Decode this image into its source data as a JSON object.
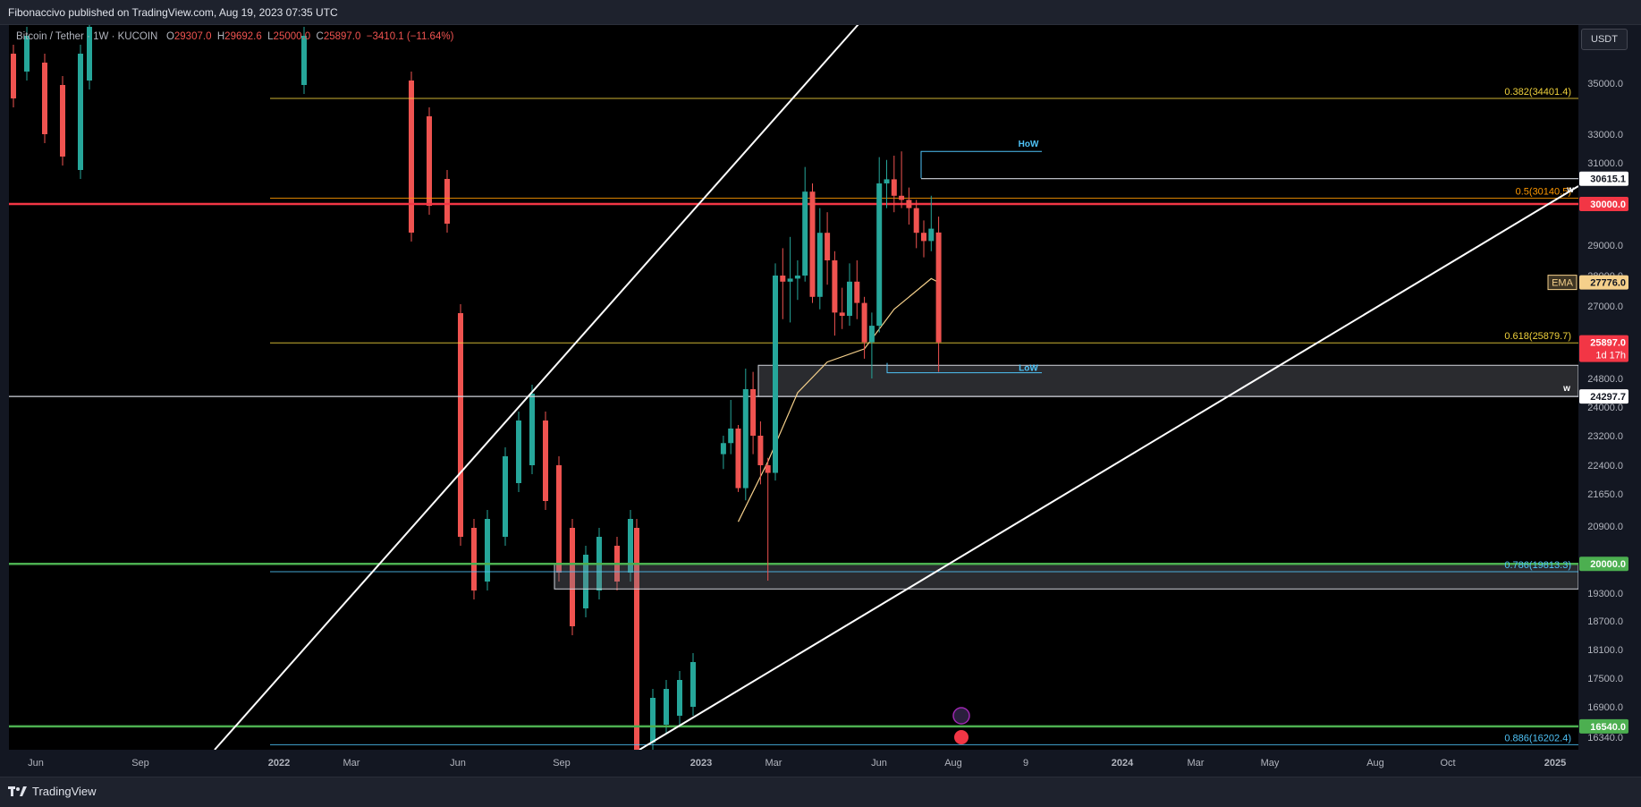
{
  "header": {
    "published": "Fibonacci​vo published on TradingView.com, Aug 19, 2023 07:35 UTC",
    "currency_button": "USDT"
  },
  "legend": {
    "symbol": "Bitcoin / Tether",
    "interval": "1W",
    "exchange": "KUCOIN",
    "open_label": "O",
    "open": "29307.0",
    "high_label": "H",
    "high": "29692.6",
    "low_label": "L",
    "low": "25000.0",
    "close_label": "C",
    "close": "25897.0",
    "change": "−3410.1 (−11.64%)"
  },
  "footer": {
    "brand": "TradingView"
  },
  "colors": {
    "background": "#000000",
    "bull": "#26a69a",
    "bear": "#ef5350",
    "ema": "#f5d08b",
    "fib": "#f0d23c",
    "cyan": "#4fc3f7",
    "green_level": "#4caf50",
    "red_level": "#f23645"
  },
  "chart_data": {
    "type": "candlestick",
    "symbol": "Bitcoin / Tether, 1W, KUCOIN",
    "price_scale": [
      "35000.0",
      "33000.0",
      "31000.0",
      "29000.0",
      "28000.0",
      "27000.0",
      "24800.0",
      "24000.0",
      "23200.0",
      "22400.0",
      "21650.0",
      "20900.0",
      "19300.0",
      "18700.0",
      "18100.0",
      "17500.0",
      "16900.0",
      "16340.0"
    ],
    "time_scale": [
      "Jun",
      "Sep",
      "2022",
      "Mar",
      "Jun",
      "Sep",
      "2023",
      "Mar",
      "Jun",
      "Aug",
      "9",
      "2024",
      "Mar",
      "May",
      "Aug",
      "Oct",
      "2025"
    ],
    "price_labels": [
      {
        "text": "30615.1",
        "style": "white"
      },
      {
        "text": "30000.0",
        "style": "red"
      },
      {
        "text": "27776.0",
        "style": "ema",
        "tag": "EMA"
      },
      {
        "text": "25897.0",
        "style": "red",
        "sub": "1d 17h"
      },
      {
        "text": "24297.7",
        "style": "white"
      },
      {
        "text": "20000.0",
        "style": "green"
      },
      {
        "text": "16540.0",
        "style": "green"
      }
    ],
    "fib_levels": [
      {
        "label": "0.382(34401.4)",
        "price": 34401.4
      },
      {
        "label": "0.5(30140.5)",
        "price": 30140.5
      },
      {
        "label": "0.618(25879.7)",
        "price": 25879.7
      },
      {
        "label": "0.786(19813.3)",
        "price": 19813.3
      },
      {
        "label": "0.886(16202.4)",
        "price": 16202.4
      }
    ],
    "annotations": [
      "HoW",
      "LoW",
      "w",
      "w"
    ],
    "horizontal_levels": [
      30615.1,
      30000.0,
      24297.7,
      20000.0,
      16540.0
    ],
    "zones": [
      {
        "from": 24297.7,
        "to": 25200.0
      },
      {
        "from": 19400.0,
        "to": 20000.0
      }
    ],
    "candles": [
      {
        "t": "2023-01-23",
        "o": 22700,
        "h": 23200,
        "l": 22300,
        "c": 23000
      },
      {
        "t": "2023-01-30",
        "o": 23000,
        "h": 24200,
        "l": 22700,
        "c": 23400
      },
      {
        "t": "2023-02-06",
        "o": 23400,
        "h": 23500,
        "l": 21700,
        "c": 21800
      },
      {
        "t": "2023-02-13",
        "o": 21800,
        "h": 25100,
        "l": 21500,
        "c": 24500
      },
      {
        "t": "2023-02-20",
        "o": 24500,
        "h": 25000,
        "l": 22700,
        "c": 23200
      },
      {
        "t": "2023-02-27",
        "o": 23200,
        "h": 23600,
        "l": 21900,
        "c": 22400
      },
      {
        "t": "2023-03-06",
        "o": 22400,
        "h": 22600,
        "l": 19600,
        "c": 22200
      },
      {
        "t": "2023-03-13",
        "o": 22200,
        "h": 28400,
        "l": 22000,
        "c": 28000
      },
      {
        "t": "2023-03-20",
        "o": 28000,
        "h": 28900,
        "l": 26600,
        "c": 27800
      },
      {
        "t": "2023-03-27",
        "o": 27800,
        "h": 29200,
        "l": 26500,
        "c": 27900
      },
      {
        "t": "2023-04-03",
        "o": 27900,
        "h": 28500,
        "l": 27200,
        "c": 28000
      },
      {
        "t": "2023-04-10",
        "o": 28000,
        "h": 30900,
        "l": 27800,
        "c": 30300
      },
      {
        "t": "2023-04-17",
        "o": 30300,
        "h": 30500,
        "l": 27100,
        "c": 27300
      },
      {
        "t": "2023-04-24",
        "o": 27300,
        "h": 29900,
        "l": 26900,
        "c": 29300
      },
      {
        "t": "2023-05-01",
        "o": 29300,
        "h": 29800,
        "l": 27700,
        "c": 28500
      },
      {
        "t": "2023-05-08",
        "o": 28500,
        "h": 28800,
        "l": 26100,
        "c": 26800
      },
      {
        "t": "2023-05-15",
        "o": 26800,
        "h": 27600,
        "l": 26300,
        "c": 26700
      },
      {
        "t": "2023-05-22",
        "o": 26700,
        "h": 28400,
        "l": 26400,
        "c": 27800
      },
      {
        "t": "2023-05-29",
        "o": 27800,
        "h": 28500,
        "l": 26600,
        "c": 27100
      },
      {
        "t": "2023-06-05",
        "o": 27100,
        "h": 27300,
        "l": 25400,
        "c": 25900
      },
      {
        "t": "2023-06-12",
        "o": 25900,
        "h": 26800,
        "l": 24800,
        "c": 26400
      },
      {
        "t": "2023-06-19",
        "o": 26400,
        "h": 31400,
        "l": 26200,
        "c": 30500
      },
      {
        "t": "2023-06-26",
        "o": 30500,
        "h": 31200,
        "l": 29900,
        "c": 30600
      },
      {
        "t": "2023-07-03",
        "o": 30600,
        "h": 31500,
        "l": 29800,
        "c": 30200
      },
      {
        "t": "2023-07-10",
        "o": 30200,
        "h": 31800,
        "l": 29900,
        "c": 30100
      },
      {
        "t": "2023-07-17",
        "o": 30100,
        "h": 30400,
        "l": 29500,
        "c": 29900
      },
      {
        "t": "2023-07-24",
        "o": 29900,
        "h": 30100,
        "l": 28900,
        "c": 29300
      },
      {
        "t": "2023-07-31",
        "o": 29300,
        "h": 29600,
        "l": 28600,
        "c": 29100
      },
      {
        "t": "2023-08-07",
        "o": 29100,
        "h": 30200,
        "l": 28800,
        "c": 29400
      },
      {
        "t": "2023-08-14",
        "o": 29307,
        "h": 29692.6,
        "l": 25000,
        "c": 25897
      }
    ],
    "ema_points": [
      {
        "t": "2023-02-06",
        "v": 21000
      },
      {
        "t": "2023-03-06",
        "v": 22500
      },
      {
        "t": "2023-04-03",
        "v": 24400
      },
      {
        "t": "2023-05-01",
        "v": 25300
      },
      {
        "t": "2023-06-05",
        "v": 25700
      },
      {
        "t": "2023-07-03",
        "v": 26900
      },
      {
        "t": "2023-08-07",
        "v": 27900
      },
      {
        "t": "2023-08-14",
        "v": 27776
      }
    ]
  }
}
